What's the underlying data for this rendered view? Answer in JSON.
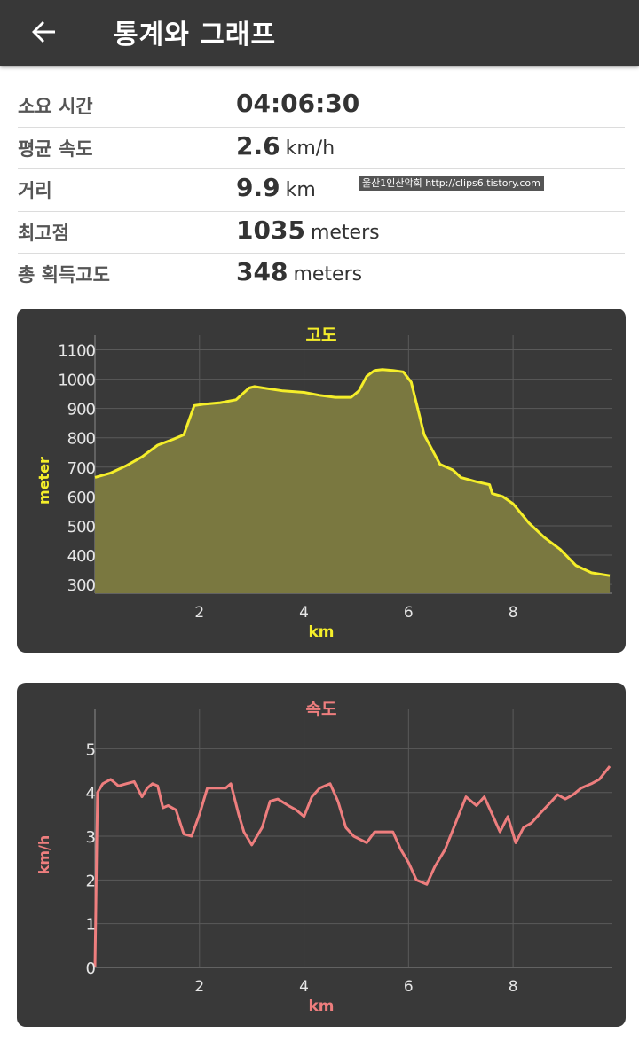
{
  "appbar": {
    "title": "통계와 그래프",
    "back_icon": "arrow-left-icon"
  },
  "stats": [
    {
      "label": "소요 시간",
      "value": "04:06:30",
      "unit": ""
    },
    {
      "label": "평균 속도",
      "value": "2.6",
      "unit": "km/h"
    },
    {
      "label": "거리",
      "value": "9.9",
      "unit": "km"
    },
    {
      "label": "최고점",
      "value": "1035",
      "unit": "meters"
    },
    {
      "label": "총 획득고도",
      "value": "348",
      "unit": "meters"
    }
  ],
  "watermark": "울산1인산악회  http://clips6.tistory.com",
  "colors": {
    "altitude_line": "#f5ee2a",
    "altitude_fill": "#7a7840",
    "speed_line": "#ee7e7e",
    "card_bg": "#393939",
    "grid": "#5a5a5a"
  },
  "chart_data": [
    {
      "type": "area",
      "title": "고도",
      "xlabel": "km",
      "ylabel": "meter",
      "xlim": [
        0,
        9.9
      ],
      "ylim": [
        270,
        1150
      ],
      "xticks": [
        2,
        4,
        6,
        8
      ],
      "yticks": [
        300,
        400,
        500,
        600,
        700,
        800,
        900,
        1000,
        1100
      ],
      "grid": true,
      "x": [
        0,
        0.3,
        0.6,
        0.9,
        1.2,
        1.5,
        1.7,
        1.9,
        2.1,
        2.4,
        2.7,
        2.95,
        3.05,
        3.3,
        3.6,
        4.0,
        4.3,
        4.6,
        4.9,
        5.05,
        5.2,
        5.35,
        5.5,
        5.7,
        5.9,
        6.05,
        6.3,
        6.6,
        6.85,
        7.0,
        7.3,
        7.55,
        7.6,
        7.8,
        8.0,
        8.3,
        8.6,
        8.9,
        9.2,
        9.5,
        9.85
      ],
      "y": [
        665,
        680,
        705,
        735,
        775,
        795,
        810,
        910,
        915,
        920,
        930,
        970,
        975,
        968,
        960,
        955,
        945,
        938,
        938,
        960,
        1010,
        1030,
        1033,
        1030,
        1025,
        990,
        810,
        710,
        690,
        665,
        650,
        640,
        610,
        600,
        575,
        510,
        460,
        420,
        365,
        340,
        330
      ]
    },
    {
      "type": "line",
      "title": "속도",
      "xlabel": "km",
      "ylabel": "km/h",
      "xlim": [
        0,
        9.9
      ],
      "ylim": [
        0,
        5.9
      ],
      "xticks": [
        2,
        4,
        6,
        8
      ],
      "yticks": [
        0,
        1,
        2,
        3,
        4,
        5
      ],
      "grid": true,
      "x": [
        0,
        0.05,
        0.15,
        0.3,
        0.45,
        0.6,
        0.75,
        0.9,
        1.0,
        1.1,
        1.2,
        1.3,
        1.4,
        1.55,
        1.7,
        1.85,
        2.0,
        2.15,
        2.3,
        2.5,
        2.6,
        2.75,
        2.85,
        3.0,
        3.2,
        3.35,
        3.5,
        3.7,
        3.85,
        4.0,
        4.15,
        4.3,
        4.5,
        4.65,
        4.8,
        4.95,
        5.2,
        5.35,
        5.5,
        5.7,
        5.85,
        6.0,
        6.15,
        6.35,
        6.5,
        6.7,
        6.9,
        7.1,
        7.3,
        7.45,
        7.6,
        7.75,
        7.9,
        8.05,
        8.2,
        8.35,
        8.5,
        8.7,
        8.85,
        9.0,
        9.15,
        9.3,
        9.5,
        9.65,
        9.85
      ],
      "y": [
        0,
        4.0,
        4.2,
        4.3,
        4.15,
        4.2,
        4.25,
        3.9,
        4.1,
        4.2,
        4.15,
        3.65,
        3.7,
        3.6,
        3.05,
        3.0,
        3.5,
        4.1,
        4.1,
        4.1,
        4.2,
        3.5,
        3.1,
        2.8,
        3.2,
        3.8,
        3.85,
        3.7,
        3.6,
        3.45,
        3.9,
        4.1,
        4.2,
        3.8,
        3.2,
        3.0,
        2.85,
        3.1,
        3.1,
        3.1,
        2.7,
        2.4,
        2.0,
        1.9,
        2.3,
        2.7,
        3.3,
        3.9,
        3.7,
        3.9,
        3.5,
        3.1,
        3.45,
        2.85,
        3.2,
        3.3,
        3.5,
        3.75,
        3.95,
        3.85,
        3.95,
        4.1,
        4.2,
        4.3,
        4.6
      ]
    }
  ]
}
